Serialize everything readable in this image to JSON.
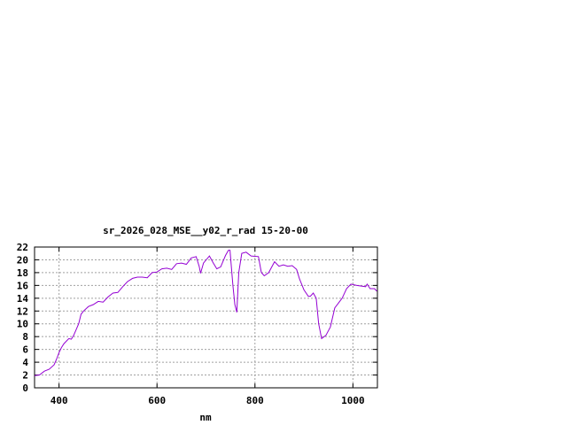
{
  "chart_data": {
    "type": "line",
    "title": "sr_2026_028_MSE__y02_r_rad 15-20-00",
    "xlabel": "nm",
    "ylabel": "",
    "xlim": [
      350,
      1050
    ],
    "ylim": [
      0,
      22
    ],
    "xticks": [
      400,
      600,
      800,
      1000
    ],
    "yticks": [
      0,
      2,
      4,
      6,
      8,
      10,
      12,
      14,
      16,
      18,
      20,
      22
    ],
    "grid": true,
    "series_color": "#9400d3",
    "x": [
      350,
      360,
      370,
      380,
      390,
      395,
      400,
      405,
      410,
      420,
      425,
      430,
      440,
      445,
      450,
      460,
      470,
      480,
      490,
      500,
      510,
      520,
      530,
      540,
      550,
      560,
      570,
      580,
      590,
      600,
      610,
      620,
      630,
      640,
      650,
      660,
      670,
      680,
      686,
      689,
      695,
      707,
      715,
      722,
      730,
      740,
      746,
      749,
      755,
      759,
      763,
      767,
      773,
      782,
      792,
      807,
      813,
      819,
      828,
      840,
      849,
      858,
      867,
      876,
      885,
      891,
      900,
      909,
      913,
      919,
      925,
      930,
      936,
      945,
      954,
      963,
      978,
      987,
      996,
      1008,
      1026,
      1029,
      1035,
      1044,
      1049
    ],
    "y": [
      1.9,
      2.0,
      2.6,
      2.9,
      3.6,
      4.5,
      5.5,
      6.3,
      6.9,
      7.7,
      7.6,
      8.2,
      10.0,
      11.5,
      12.0,
      12.7,
      13.0,
      13.5,
      13.4,
      14.2,
      14.8,
      14.9,
      15.8,
      16.6,
      17.1,
      17.3,
      17.3,
      17.2,
      18.0,
      18.1,
      18.6,
      18.7,
      18.5,
      19.4,
      19.5,
      19.3,
      20.3,
      20.5,
      19.0,
      17.9,
      19.5,
      20.6,
      19.5,
      18.6,
      18.9,
      20.7,
      21.5,
      21.5,
      16.0,
      13.0,
      11.8,
      18.0,
      21.0,
      21.2,
      20.6,
      20.5,
      18.0,
      17.5,
      18.0,
      19.7,
      19.0,
      19.2,
      19.0,
      19.1,
      18.5,
      17.0,
      15.3,
      14.3,
      14.3,
      14.8,
      14.0,
      10.0,
      7.7,
      8.2,
      9.5,
      12.5,
      14.0,
      15.5,
      16.2,
      16.0,
      15.8,
      16.2,
      15.5,
      15.5,
      15.1
    ]
  }
}
